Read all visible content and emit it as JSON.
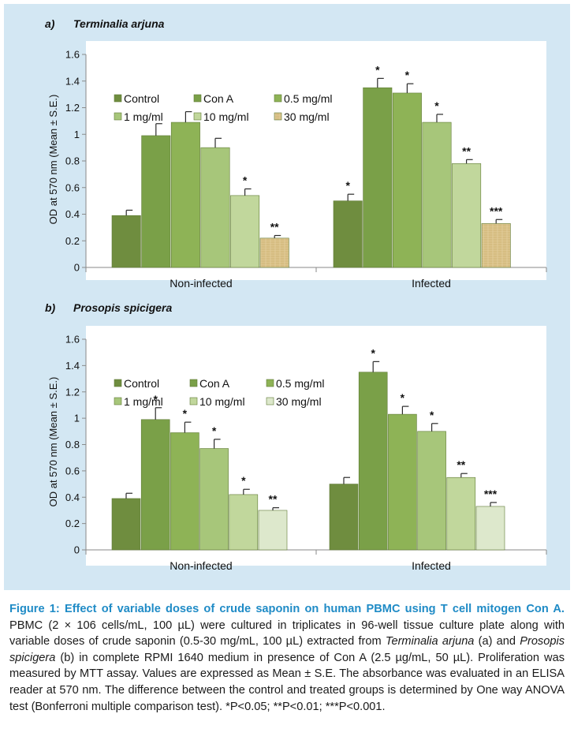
{
  "colors": {
    "frame_bg": "#d3e7f3",
    "plot_bg": "#ffffff",
    "series_a": [
      "#6f8d3f",
      "#7aa048",
      "#8eb356",
      "#a7c67a",
      "#c1d79c",
      "#dcc48c"
    ],
    "series_b": [
      "#6f8d3f",
      "#7aa048",
      "#8eb356",
      "#a7c67a",
      "#c1d79c",
      "#dde8cc"
    ],
    "caption_title": "#1f8bc6"
  },
  "chart_data": [
    {
      "type": "bar",
      "panel_letter": "a)",
      "panel_name": "Terminalia arjuna",
      "ylabel": "OD at 570 nm (Mean ± S.E.)",
      "xlabel": "",
      "ylim": [
        0,
        1.6
      ],
      "yticks": [
        "0",
        "0.2",
        "0.4",
        "0.6",
        "0.8",
        "1",
        "1.2",
        "1.4",
        "1.6"
      ],
      "categories": [
        "Non-infected",
        "Infected"
      ],
      "series": [
        {
          "name": "Control",
          "values": [
            0.39,
            0.5
          ],
          "errors": [
            0.04,
            0.05
          ],
          "sig": [
            "",
            "*"
          ]
        },
        {
          "name": "Con A",
          "values": [
            0.99,
            1.35
          ],
          "errors": [
            0.09,
            0.07
          ],
          "sig": [
            "",
            "*"
          ]
        },
        {
          "name": "0.5 mg/ml",
          "values": [
            1.09,
            1.31
          ],
          "errors": [
            0.08,
            0.07
          ],
          "sig": [
            "",
            "*"
          ]
        },
        {
          "name": "1 mg/ml",
          "values": [
            0.9,
            1.09
          ],
          "errors": [
            0.07,
            0.06
          ],
          "sig": [
            "",
            "*"
          ]
        },
        {
          "name": "10 mg/ml",
          "values": [
            0.54,
            0.78
          ],
          "errors": [
            0.05,
            0.03
          ],
          "sig": [
            "*",
            "**"
          ]
        },
        {
          "name": "30 mg/ml",
          "values": [
            0.22,
            0.33
          ],
          "errors": [
            0.02,
            0.03
          ],
          "sig": [
            "**",
            "***"
          ]
        }
      ]
    },
    {
      "type": "bar",
      "panel_letter": "b)",
      "panel_name": "Prosopis spicigera",
      "ylabel": "OD at 570 nm (Mean ± S.E.)",
      "xlabel": "",
      "ylim": [
        0,
        1.6
      ],
      "yticks": [
        "0",
        "0.2",
        "0.4",
        "0.6",
        "0.8",
        "1",
        "1.2",
        "1.4",
        "1.6"
      ],
      "categories": [
        "Non-infected",
        "Infected"
      ],
      "series": [
        {
          "name": "Control",
          "values": [
            0.39,
            0.5
          ],
          "errors": [
            0.04,
            0.05
          ],
          "sig": [
            "",
            ""
          ]
        },
        {
          "name": "Con A",
          "values": [
            0.99,
            1.35
          ],
          "errors": [
            0.09,
            0.08
          ],
          "sig": [
            "*",
            "*"
          ]
        },
        {
          "name": "0.5 mg/ml",
          "values": [
            0.89,
            1.03
          ],
          "errors": [
            0.08,
            0.06
          ],
          "sig": [
            "*",
            "*"
          ]
        },
        {
          "name": "1 mg/ml",
          "values": [
            0.77,
            0.9
          ],
          "errors": [
            0.07,
            0.06
          ],
          "sig": [
            "*",
            "*"
          ]
        },
        {
          "name": "10 mg/ml",
          "values": [
            0.42,
            0.55
          ],
          "errors": [
            0.04,
            0.03
          ],
          "sig": [
            "*",
            "**"
          ]
        },
        {
          "name": "30 mg/ml",
          "values": [
            0.3,
            0.33
          ],
          "errors": [
            0.02,
            0.03
          ],
          "sig": [
            "**",
            "***"
          ]
        }
      ]
    }
  ],
  "caption": {
    "title": "Figure 1: Effect of variable doses of crude saponin on human PBMC using T cell mitogen Con A.",
    "body_1": " PBMC (2 × 106 cells/mL, 100 µL) were cultured in triplicates in 96-well tissue culture plate along with variable doses of crude saponin (0.5-30 mg/mL, 100 µL) extracted from ",
    "italic_1": "Terminalia arjuna",
    "body_2": " (a) and ",
    "italic_2": "Prosopis spicigera",
    "body_3": " (b) in complete RPMI 1640 medium in presence of Con A (2.5 µg/mL, 50 µL). Proliferation was measured by MTT assay. Values are expressed as Mean ± S.E. The absorbance was evaluated in an ELISA reader at 570 nm. The difference between the control and treated groups is determined by One way ANOVA test (Bonferroni multiple comparison test). *P<0.05; **P<0.01; ***P<0.001."
  }
}
